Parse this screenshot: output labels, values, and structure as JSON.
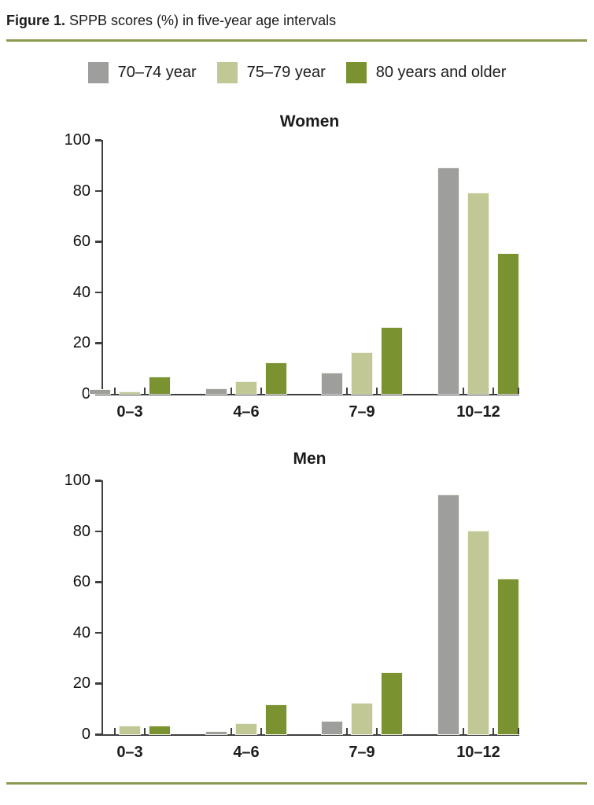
{
  "header": {
    "title_prefix": "Figure 1.",
    "title_rest": " SPPB scores (%) in five-year age intervals"
  },
  "colors": {
    "gray": "#9e9e9c",
    "light_green": "#c1c795",
    "dark_green": "#7a9330",
    "rule_green": "#8a9b50",
    "axis": "#3f3f3f"
  },
  "legend": {
    "items": [
      {
        "label": "70–74 year",
        "color": "#9e9e9c"
      },
      {
        "label": "75–79 year",
        "color": "#c1c795"
      },
      {
        "label": "80 years and older",
        "color": "#7a9330"
      }
    ]
  },
  "chart_data": [
    {
      "type": "bar",
      "title": "Women",
      "categories": [
        "0–3",
        "4–6",
        "7–9",
        "10–12"
      ],
      "series": [
        {
          "name": "70–74 year",
          "color": "#9e9e9c",
          "values": [
            1.5,
            2,
            8,
            89
          ]
        },
        {
          "name": "75–79 year",
          "color": "#c1c795",
          "values": [
            0.5,
            4.5,
            16,
            79
          ]
        },
        {
          "name": "80 years and older",
          "color": "#7a9330",
          "values": [
            6.5,
            12,
            26,
            55
          ]
        }
      ],
      "xlabel": "",
      "ylabel": "",
      "ylim": [
        0,
        100
      ],
      "yticks": [
        0,
        20,
        40,
        60,
        80,
        100
      ],
      "grid": false,
      "legend_position": "top"
    },
    {
      "type": "bar",
      "title": "Men",
      "categories": [
        "0–3",
        "4–6",
        "7–9",
        "10–12"
      ],
      "series": [
        {
          "name": "70–74 year",
          "color": "#9e9e9c",
          "values": [
            0,
            1,
            5,
            94
          ]
        },
        {
          "name": "75–79 year",
          "color": "#c1c795",
          "values": [
            3,
            4,
            12,
            80
          ]
        },
        {
          "name": "80 years and older",
          "color": "#7a9330",
          "values": [
            3,
            11.5,
            24,
            61
          ]
        }
      ],
      "xlabel": "",
      "ylabel": "",
      "ylim": [
        0,
        100
      ],
      "yticks": [
        0,
        20,
        40,
        60,
        80,
        100
      ],
      "grid": false,
      "legend_position": "top"
    }
  ]
}
